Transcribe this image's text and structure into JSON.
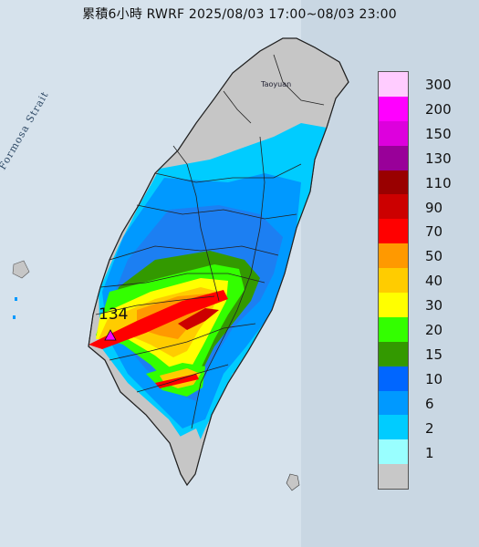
{
  "title": "累積6小時 RWRF 2025/08/03 17:00~08/03 23:00",
  "strait_label": "Formosa Strait",
  "place_label": "Taoyuan",
  "max_value_label": "134",
  "legend": {
    "units_colors": [
      {
        "label": "300",
        "color": "#ffccff"
      },
      {
        "label": "200",
        "color": "#ff00ff"
      },
      {
        "label": "150",
        "color": "#dd00dd"
      },
      {
        "label": "130",
        "color": "#990099"
      },
      {
        "label": "110",
        "color": "#990000"
      },
      {
        "label": "90",
        "color": "#cc0000"
      },
      {
        "label": "70",
        "color": "#ff0000"
      },
      {
        "label": "50",
        "color": "#ff9900"
      },
      {
        "label": "40",
        "color": "#ffcc00"
      },
      {
        "label": "30",
        "color": "#ffff00"
      },
      {
        "label": "20",
        "color": "#33ff00"
      },
      {
        "label": "15",
        "color": "#339900"
      },
      {
        "label": "10",
        "color": "#0066ff"
      },
      {
        "label": "6",
        "color": "#0099ff"
      },
      {
        "label": "2",
        "color": "#00ccff"
      },
      {
        "label": "1",
        "color": "#99ffff"
      },
      {
        "label": "",
        "color": "#c8c8c8"
      }
    ]
  }
}
